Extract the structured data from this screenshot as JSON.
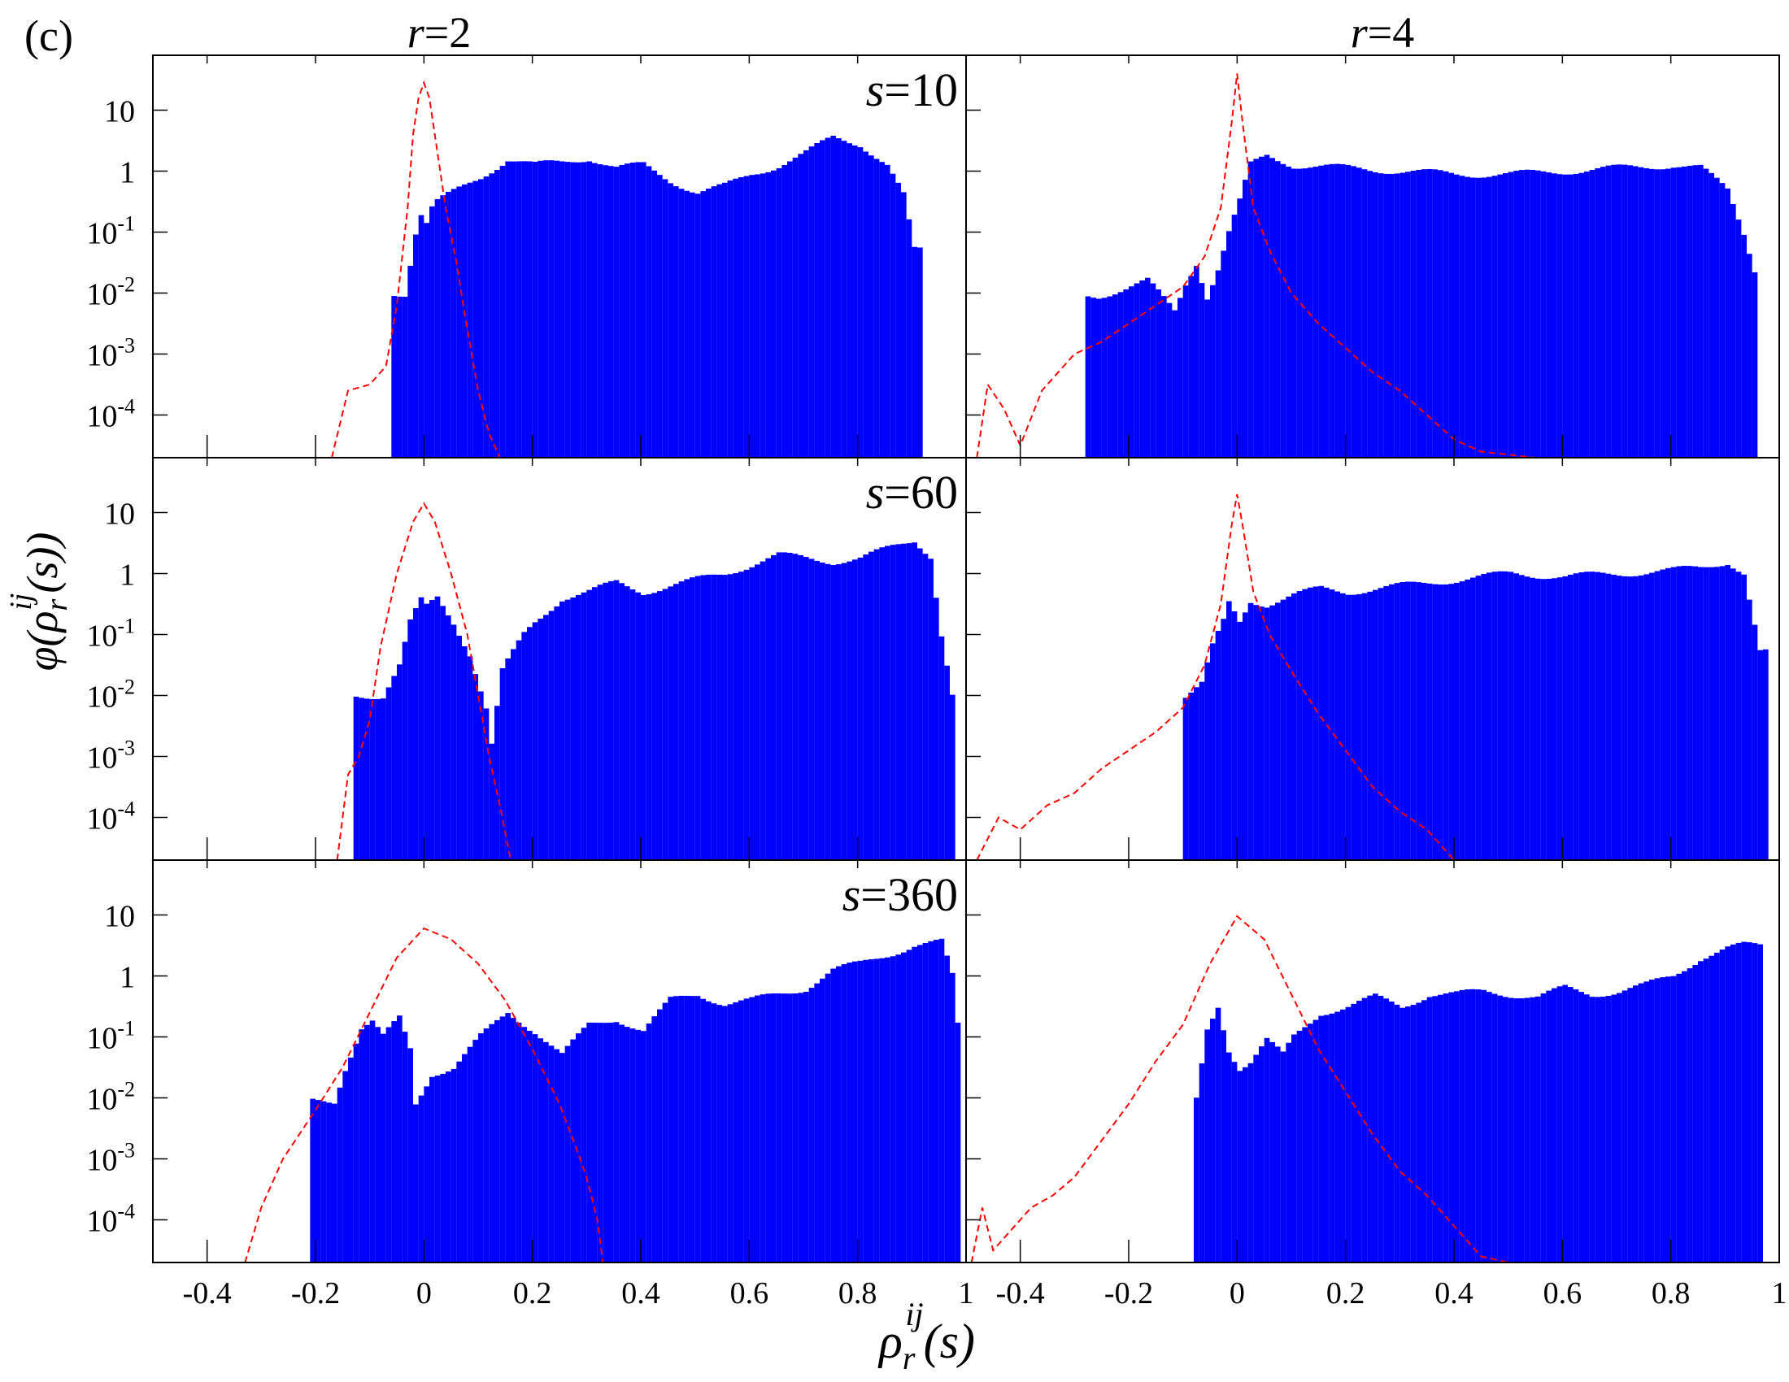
{
  "figure": {
    "panel_label": "(c)",
    "xlabel_main": "ρ",
    "xlabel_sub": "r",
    "xlabel_sup": "ij",
    "xlabel_tail": "(s)",
    "ylabel_main": "φ(ρ",
    "ylabel_sub": "r",
    "ylabel_sup": "ij",
    "ylabel_tail": "(s))",
    "col_titles": [
      {
        "var": "r",
        "eq": "=2"
      },
      {
        "var": "r",
        "eq": "=4"
      }
    ],
    "row_labels": [
      {
        "var": "s",
        "eq": "=10"
      },
      {
        "var": "s",
        "eq": "=60"
      },
      {
        "var": "s",
        "eq": "=360"
      }
    ],
    "colors": {
      "bars": "#0000ff",
      "line": "#ff0000",
      "axis": "#000000"
    }
  },
  "chart_data": {
    "type": "bar",
    "layout": "3x2 grid of histograms with overlaid dashed curve",
    "xlim": [
      -0.5,
      1.0
    ],
    "ylim_log10": [
      -4.7,
      1.9
    ],
    "yscale": "log",
    "x_ticks": [
      -0.4,
      -0.2,
      0,
      0.2,
      0.4,
      0.6,
      0.8,
      1
    ],
    "x_tick_labels_left": [
      "-0.4",
      "-0.2",
      "0",
      "0.2",
      "0.4",
      "0.6",
      "0.8",
      "1"
    ],
    "x_tick_labels_right": [
      "-0.4",
      "-0.2",
      "0",
      "0.2",
      "0.4",
      "0.6",
      "0.8",
      "1"
    ],
    "y_ticks": [
      {
        "exp": -4,
        "base": "10",
        "sup": "-4"
      },
      {
        "exp": -3,
        "base": "10",
        "sup": "-3"
      },
      {
        "exp": -2,
        "base": "10",
        "sup": "-2"
      },
      {
        "exp": -1,
        "base": "10",
        "sup": "-1"
      },
      {
        "exp": 0,
        "base": "1",
        "sup": ""
      },
      {
        "exp": 1,
        "base": "10",
        "sup": ""
      }
    ],
    "series": [
      {
        "name": "histogram (blue bars)",
        "kind": "bar"
      },
      {
        "name": "shuffled / reference (red dashed)",
        "kind": "line"
      }
    ],
    "panels": [
      {
        "r": 2,
        "s": 10,
        "bars_range": [
          -0.06,
          0.91
        ],
        "bars": [
          [
            -0.05,
            -2
          ],
          [
            -0.04,
            -2
          ],
          [
            -0.03,
            -1.5
          ],
          [
            -0.02,
            -1
          ],
          [
            -0.01,
            -0.7
          ],
          [
            0,
            -0.85
          ],
          [
            0.01,
            -0.6
          ],
          [
            0.02,
            -0.5
          ],
          [
            0.05,
            -0.35
          ],
          [
            0.1,
            -0.1
          ],
          [
            0.15,
            0.2
          ],
          [
            0.2,
            0.1
          ],
          [
            0.25,
            0.15
          ],
          [
            0.3,
            0.22
          ],
          [
            0.35,
            0.05
          ],
          [
            0.4,
            0.1
          ],
          [
            0.45,
            -0.15
          ],
          [
            0.5,
            -0.35
          ],
          [
            0.55,
            -0.25
          ],
          [
            0.6,
            -0.05
          ],
          [
            0.65,
            0.1
          ],
          [
            0.7,
            0.3
          ],
          [
            0.75,
            0.55
          ],
          [
            0.8,
            0.45
          ],
          [
            0.85,
            0.1
          ],
          [
            0.88,
            -0.4
          ],
          [
            0.9,
            -1.3
          ]
        ],
        "line": [
          [
            -0.17,
            -4.7
          ],
          [
            -0.14,
            -3.6
          ],
          [
            -0.1,
            -3.5
          ],
          [
            -0.07,
            -3.2
          ],
          [
            -0.05,
            -2.2
          ],
          [
            -0.03,
            -0.6
          ],
          [
            -0.02,
            0.6
          ],
          [
            -0.01,
            1.2
          ],
          [
            0,
            1.45
          ],
          [
            0.01,
            1.2
          ],
          [
            0.02,
            0.6
          ],
          [
            0.04,
            -0.6
          ],
          [
            0.06,
            -1.5
          ],
          [
            0.08,
            -2.6
          ],
          [
            0.1,
            -3.6
          ],
          [
            0.12,
            -4.3
          ],
          [
            0.14,
            -4.7
          ]
        ]
      },
      {
        "r": 4,
        "s": 10,
        "bars_range": [
          -0.28,
          0.95
        ],
        "bars": [
          [
            -0.28,
            -2.05
          ],
          [
            -0.26,
            -2.05
          ],
          [
            -0.17,
            -1.8
          ],
          [
            -0.12,
            -2.3
          ],
          [
            -0.1,
            -1.85
          ],
          [
            -0.08,
            -1.5
          ],
          [
            -0.06,
            -2.05
          ],
          [
            -0.04,
            -1.6
          ],
          [
            -0.02,
            -1
          ],
          [
            0,
            -0.5
          ],
          [
            0.02,
            0.1
          ],
          [
            0.05,
            0.25
          ],
          [
            0.1,
            0.1
          ],
          [
            0.2,
            0.05
          ],
          [
            0.3,
            0.0
          ],
          [
            0.4,
            -0.05
          ],
          [
            0.5,
            -0.05
          ],
          [
            0.6,
            0.0
          ],
          [
            0.7,
            0.05
          ],
          [
            0.8,
            0.1
          ],
          [
            0.85,
            0.05
          ],
          [
            0.9,
            -0.3
          ],
          [
            0.93,
            -1
          ],
          [
            0.95,
            -1.6
          ]
        ],
        "line": [
          [
            -0.48,
            -4.7
          ],
          [
            -0.46,
            -3.5
          ],
          [
            -0.43,
            -3.9
          ],
          [
            -0.4,
            -4.5
          ],
          [
            -0.36,
            -3.6
          ],
          [
            -0.3,
            -3.0
          ],
          [
            -0.25,
            -2.8
          ],
          [
            -0.2,
            -2.5
          ],
          [
            -0.15,
            -2.2
          ],
          [
            -0.1,
            -1.9
          ],
          [
            -0.06,
            -1.4
          ],
          [
            -0.03,
            -0.6
          ],
          [
            -0.01,
            0.8
          ],
          [
            0,
            1.6
          ],
          [
            0.01,
            0.8
          ],
          [
            0.03,
            -0.6
          ],
          [
            0.06,
            -1.3
          ],
          [
            0.1,
            -2.0
          ],
          [
            0.15,
            -2.5
          ],
          [
            0.2,
            -2.9
          ],
          [
            0.25,
            -3.3
          ],
          [
            0.3,
            -3.6
          ],
          [
            0.35,
            -4.0
          ],
          [
            0.4,
            -4.4
          ],
          [
            0.45,
            -4.6
          ],
          [
            0.55,
            -4.7
          ]
        ]
      },
      {
        "r": 2,
        "s": 60,
        "bars_range": [
          -0.13,
          0.97
        ],
        "bars": [
          [
            -0.12,
            -2
          ],
          [
            -0.08,
            -2
          ],
          [
            -0.05,
            -1.5
          ],
          [
            -0.03,
            -0.8
          ],
          [
            -0.01,
            -0.45
          ],
          [
            0,
            -0.55
          ],
          [
            0.02,
            -0.4
          ],
          [
            0.05,
            -0.8
          ],
          [
            0.08,
            -1.3
          ],
          [
            0.11,
            -2.2
          ],
          [
            0.12,
            -2.8
          ],
          [
            0.14,
            -1.6
          ],
          [
            0.18,
            -1.0
          ],
          [
            0.2,
            -0.8
          ],
          [
            0.25,
            -0.4
          ],
          [
            0.3,
            -0.3
          ],
          [
            0.35,
            -0.15
          ],
          [
            0.4,
            -0.3
          ],
          [
            0.45,
            -0.2
          ],
          [
            0.5,
            -0.1
          ],
          [
            0.55,
            0.0
          ],
          [
            0.6,
            0.15
          ],
          [
            0.65,
            0.3
          ],
          [
            0.7,
            0.25
          ],
          [
            0.75,
            0.2
          ],
          [
            0.8,
            0.25
          ],
          [
            0.85,
            0.4
          ],
          [
            0.9,
            0.55
          ],
          [
            0.93,
            0.3
          ],
          [
            0.95,
            -1.0
          ],
          [
            0.97,
            -2.0
          ]
        ],
        "line": [
          [
            -0.16,
            -4.7
          ],
          [
            -0.14,
            -3.3
          ],
          [
            -0.12,
            -3.0
          ],
          [
            -0.1,
            -2.4
          ],
          [
            -0.08,
            -1.2
          ],
          [
            -0.05,
            0.0
          ],
          [
            -0.02,
            0.85
          ],
          [
            0,
            1.15
          ],
          [
            0.02,
            0.85
          ],
          [
            0.05,
            0.0
          ],
          [
            0.08,
            -1.0
          ],
          [
            0.1,
            -2.0
          ],
          [
            0.12,
            -3.0
          ],
          [
            0.14,
            -3.8
          ],
          [
            0.16,
            -4.7
          ]
        ]
      },
      {
        "r": 4,
        "s": 60,
        "bars_range": [
          -0.1,
          0.97
        ],
        "bars": [
          [
            -0.1,
            -2.0
          ],
          [
            -0.07,
            -1.8
          ],
          [
            -0.05,
            -1.2
          ],
          [
            -0.03,
            -0.8
          ],
          [
            -0.02,
            -0.5
          ],
          [
            0,
            -0.8
          ],
          [
            0.02,
            -0.45
          ],
          [
            0.05,
            -0.5
          ],
          [
            0.1,
            -0.35
          ],
          [
            0.15,
            -0.25
          ],
          [
            0.2,
            -0.3
          ],
          [
            0.3,
            -0.2
          ],
          [
            0.4,
            -0.1
          ],
          [
            0.5,
            0.0
          ],
          [
            0.6,
            -0.05
          ],
          [
            0.7,
            0.0
          ],
          [
            0.8,
            0.05
          ],
          [
            0.85,
            0.1
          ],
          [
            0.9,
            0.2
          ],
          [
            0.93,
            0.0
          ],
          [
            0.96,
            -1.3
          ]
        ],
        "line": [
          [
            -0.48,
            -4.7
          ],
          [
            -0.44,
            -4.0
          ],
          [
            -0.4,
            -4.2
          ],
          [
            -0.35,
            -3.8
          ],
          [
            -0.3,
            -3.6
          ],
          [
            -0.25,
            -3.2
          ],
          [
            -0.2,
            -2.9
          ],
          [
            -0.15,
            -2.6
          ],
          [
            -0.1,
            -2.2
          ],
          [
            -0.06,
            -1.5
          ],
          [
            -0.03,
            -0.5
          ],
          [
            -0.01,
            0.8
          ],
          [
            0,
            1.3
          ],
          [
            0.01,
            0.8
          ],
          [
            0.03,
            -0.3
          ],
          [
            0.06,
            -1.0
          ],
          [
            0.1,
            -1.6
          ],
          [
            0.15,
            -2.3
          ],
          [
            0.2,
            -2.9
          ],
          [
            0.25,
            -3.5
          ],
          [
            0.3,
            -3.9
          ],
          [
            0.35,
            -4.2
          ],
          [
            0.4,
            -4.7
          ]
        ]
      },
      {
        "r": 2,
        "s": 360,
        "bars_range": [
          -0.21,
          0.98
        ],
        "bars": [
          [
            -0.21,
            -2.05
          ],
          [
            -0.17,
            -2.05
          ],
          [
            -0.15,
            -1.5
          ],
          [
            -0.12,
            -0.85
          ],
          [
            -0.1,
            -0.75
          ],
          [
            -0.08,
            -1.0
          ],
          [
            -0.05,
            -0.7
          ],
          [
            -0.03,
            -1.2
          ],
          [
            -0.02,
            -2.1
          ],
          [
            0.01,
            -1.6
          ],
          [
            0.05,
            -1.5
          ],
          [
            0.1,
            -1.0
          ],
          [
            0.15,
            -0.6
          ],
          [
            0.2,
            -0.9
          ],
          [
            0.25,
            -1.3
          ],
          [
            0.3,
            -0.8
          ],
          [
            0.35,
            -0.7
          ],
          [
            0.4,
            -0.9
          ],
          [
            0.45,
            -0.4
          ],
          [
            0.5,
            -0.3
          ],
          [
            0.55,
            -0.45
          ],
          [
            0.6,
            -0.4
          ],
          [
            0.65,
            -0.3
          ],
          [
            0.7,
            -0.2
          ],
          [
            0.75,
            0.1
          ],
          [
            0.8,
            0.2
          ],
          [
            0.85,
            0.35
          ],
          [
            0.9,
            0.5
          ],
          [
            0.95,
            0.55
          ],
          [
            0.97,
            0.0
          ],
          [
            0.98,
            -0.8
          ]
        ],
        "line": [
          [
            -0.33,
            -4.7
          ],
          [
            -0.3,
            -3.8
          ],
          [
            -0.26,
            -3.0
          ],
          [
            -0.2,
            -2.2
          ],
          [
            -0.15,
            -1.5
          ],
          [
            -0.1,
            -0.6
          ],
          [
            -0.05,
            0.3
          ],
          [
            0,
            0.78
          ],
          [
            0.05,
            0.6
          ],
          [
            0.1,
            0.2
          ],
          [
            0.15,
            -0.4
          ],
          [
            0.2,
            -1.2
          ],
          [
            0.25,
            -2.1
          ],
          [
            0.28,
            -2.8
          ],
          [
            0.3,
            -3.3
          ],
          [
            0.32,
            -4.0
          ],
          [
            0.33,
            -4.7
          ]
        ]
      },
      {
        "r": 4,
        "s": 360,
        "bars_range": [
          -0.08,
          0.96
        ],
        "bars": [
          [
            -0.08,
            -2.05
          ],
          [
            -0.06,
            -0.9
          ],
          [
            -0.04,
            -0.5
          ],
          [
            -0.02,
            -1.2
          ],
          [
            0,
            -1.5
          ],
          [
            0.02,
            -1.4
          ],
          [
            0.05,
            -1.05
          ],
          [
            0.08,
            -1.3
          ],
          [
            0.1,
            -1.0
          ],
          [
            0.15,
            -0.6
          ],
          [
            0.2,
            -0.5
          ],
          [
            0.25,
            -0.35
          ],
          [
            0.3,
            -0.5
          ],
          [
            0.35,
            -0.3
          ],
          [
            0.4,
            -0.3
          ],
          [
            0.45,
            -0.25
          ],
          [
            0.5,
            -0.3
          ],
          [
            0.55,
            -0.35
          ],
          [
            0.6,
            -0.2
          ],
          [
            0.65,
            -0.3
          ],
          [
            0.7,
            -0.25
          ],
          [
            0.75,
            -0.15
          ],
          [
            0.8,
            0.0
          ],
          [
            0.85,
            0.3
          ],
          [
            0.9,
            0.45
          ],
          [
            0.93,
            0.5
          ],
          [
            0.96,
            0.5
          ]
        ],
        "line": [
          [
            -0.49,
            -4.7
          ],
          [
            -0.47,
            -3.8
          ],
          [
            -0.45,
            -4.5
          ],
          [
            -0.42,
            -4.2
          ],
          [
            -0.38,
            -3.8
          ],
          [
            -0.34,
            -3.6
          ],
          [
            -0.3,
            -3.3
          ],
          [
            -0.25,
            -2.7
          ],
          [
            -0.2,
            -2.1
          ],
          [
            -0.15,
            -1.4
          ],
          [
            -0.1,
            -0.8
          ],
          [
            -0.05,
            0.2
          ],
          [
            0,
            0.98
          ],
          [
            0.05,
            0.6
          ],
          [
            0.1,
            -0.3
          ],
          [
            0.15,
            -1.2
          ],
          [
            0.2,
            -1.9
          ],
          [
            0.25,
            -2.6
          ],
          [
            0.3,
            -3.2
          ],
          [
            0.35,
            -3.6
          ],
          [
            0.4,
            -4.1
          ],
          [
            0.45,
            -4.6
          ],
          [
            0.5,
            -4.7
          ]
        ]
      }
    ]
  }
}
